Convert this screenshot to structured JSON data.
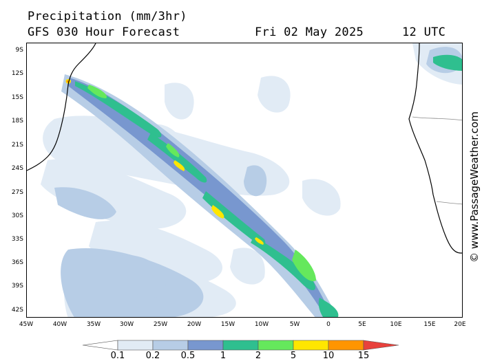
{
  "header": {
    "title": "Precipitation (mm/3hr)",
    "subtitle": "GFS 030 Hour Forecast",
    "date": "Fri 02 May 2025",
    "time": "12 UTC"
  },
  "watermark": "© www.PassageWeather.com",
  "map": {
    "latitude_labels": [
      "9S",
      "12S",
      "15S",
      "18S",
      "21S",
      "24S",
      "27S",
      "30S",
      "33S",
      "36S",
      "39S",
      "42S"
    ],
    "longitude_labels": [
      "45W",
      "40W",
      "35W",
      "30W",
      "25W",
      "20W",
      "15W",
      "10W",
      "5W",
      "0",
      "5E",
      "10E",
      "15E",
      "20E"
    ]
  },
  "legend": {
    "labels": [
      "0.1",
      "0.2",
      "0.5",
      "1",
      "2",
      "5",
      "10",
      "15"
    ],
    "colors": [
      "#ffffff",
      "#e1ebf5",
      "#b7cde6",
      "#7897cf",
      "#2fbf8f",
      "#65e85c",
      "#ffe600",
      "#ff9500",
      "#e8413c"
    ]
  },
  "colors": {
    "land_outline": "#000000",
    "border_line": "#888888"
  }
}
